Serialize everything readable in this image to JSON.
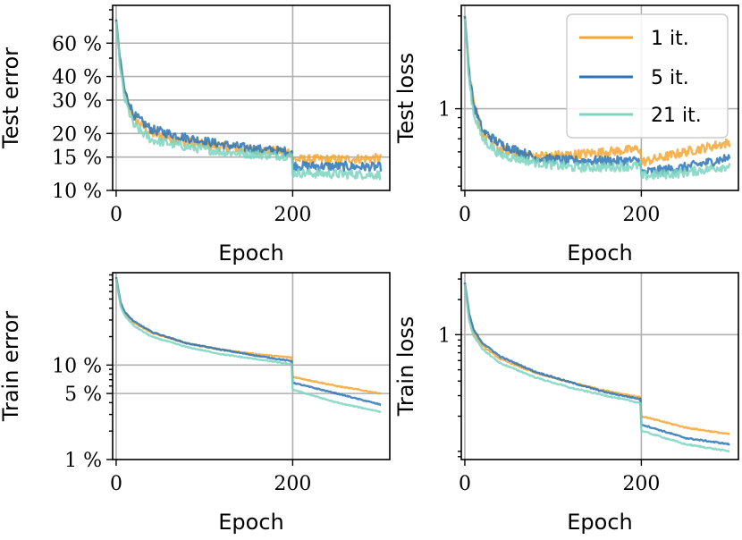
{
  "figure": {
    "legend": {
      "placement": "top-right of Test loss panel",
      "entries": [
        {
          "label": "1 it.",
          "color": "#f6a532"
        },
        {
          "label": "5 it.",
          "color": "#2c74b5"
        },
        {
          "label": "21 it.",
          "color": "#7dd4c0"
        }
      ]
    }
  },
  "chart_data": [
    {
      "type": "line",
      "id": "test-error",
      "ylabel": "Test error",
      "xlabel": "Epoch",
      "yscale": "log",
      "xlim": [
        -4,
        310
      ],
      "ylim": [
        10,
        95
      ],
      "xticks": [
        {
          "value": 0,
          "label": "0"
        },
        {
          "value": 200,
          "label": "200"
        }
      ],
      "yticks": [
        {
          "value": 10,
          "label": "10 %"
        },
        {
          "value": 15,
          "label": "15 %"
        },
        {
          "value": 20,
          "label": "20 %"
        },
        {
          "value": 30,
          "label": "30 %"
        },
        {
          "value": 40,
          "label": "40 %"
        },
        {
          "value": 60,
          "label": "60 %"
        }
      ],
      "series": [
        {
          "name": "1 it.",
          "points": [
            [
              0,
              80
            ],
            [
              5,
              45
            ],
            [
              10,
              32
            ],
            [
              20,
              24
            ],
            [
              40,
              20
            ],
            [
              80,
              18
            ],
            [
              120,
              17
            ],
            [
              160,
              16.3
            ],
            [
              199,
              16
            ],
            [
              200,
              14.6
            ],
            [
              250,
              14.6
            ],
            [
              300,
              14.8
            ]
          ]
        },
        {
          "name": "5 it.",
          "points": [
            [
              0,
              80
            ],
            [
              5,
              46
            ],
            [
              10,
              33
            ],
            [
              20,
              25
            ],
            [
              40,
              21
            ],
            [
              80,
              19
            ],
            [
              120,
              17.5
            ],
            [
              160,
              16.5
            ],
            [
              199,
              16
            ],
            [
              200,
              13.5
            ],
            [
              250,
              13.4
            ],
            [
              300,
              13.3
            ]
          ]
        },
        {
          "name": "21 it.",
          "points": [
            [
              0,
              78
            ],
            [
              5,
              42
            ],
            [
              10,
              30
            ],
            [
              20,
              22
            ],
            [
              40,
              18.5
            ],
            [
              80,
              17
            ],
            [
              120,
              16
            ],
            [
              160,
              15.5
            ],
            [
              199,
              15.2
            ],
            [
              200,
              12.4
            ],
            [
              250,
              12.2
            ],
            [
              300,
              12.1
            ]
          ]
        }
      ]
    },
    {
      "type": "line",
      "id": "test-loss",
      "ylabel": "Test loss",
      "xlabel": "Epoch",
      "yscale": "log",
      "xlim": [
        -4,
        310
      ],
      "ylim": [
        0.38,
        3.4
      ],
      "xticks": [
        {
          "value": 0,
          "label": "0"
        },
        {
          "value": 200,
          "label": "200"
        }
      ],
      "yticks": [
        {
          "value": 1,
          "label": "1"
        }
      ],
      "series": [
        {
          "name": "1 it.",
          "points": [
            [
              0,
              3
            ],
            [
              5,
              1.5
            ],
            [
              10,
              1.05
            ],
            [
              20,
              0.75
            ],
            [
              40,
              0.62
            ],
            [
              80,
              0.57
            ],
            [
              120,
              0.58
            ],
            [
              160,
              0.6
            ],
            [
              199,
              0.62
            ],
            [
              200,
              0.53
            ],
            [
              250,
              0.6
            ],
            [
              300,
              0.67
            ]
          ]
        },
        {
          "name": "5 it.",
          "points": [
            [
              0,
              3
            ],
            [
              5,
              1.5
            ],
            [
              10,
              1.05
            ],
            [
              20,
              0.77
            ],
            [
              40,
              0.66
            ],
            [
              80,
              0.56
            ],
            [
              120,
              0.54
            ],
            [
              160,
              0.54
            ],
            [
              199,
              0.54
            ],
            [
              200,
              0.47
            ],
            [
              250,
              0.5
            ],
            [
              300,
              0.56
            ]
          ]
        },
        {
          "name": "21 it.",
          "points": [
            [
              0,
              2.9
            ],
            [
              5,
              1.4
            ],
            [
              10,
              0.95
            ],
            [
              20,
              0.7
            ],
            [
              40,
              0.58
            ],
            [
              80,
              0.53
            ],
            [
              120,
              0.5
            ],
            [
              160,
              0.5
            ],
            [
              199,
              0.51
            ],
            [
              200,
              0.45
            ],
            [
              250,
              0.47
            ],
            [
              300,
              0.51
            ]
          ]
        }
      ]
    },
    {
      "type": "line",
      "id": "train-error",
      "ylabel": "Train error",
      "xlabel": "Epoch",
      "yscale": "log",
      "xlim": [
        -4,
        310
      ],
      "ylim": [
        1,
        95
      ],
      "xticks": [
        {
          "value": 0,
          "label": "0"
        },
        {
          "value": 200,
          "label": "200"
        }
      ],
      "yticks": [
        {
          "value": 1,
          "label": "1 %"
        },
        {
          "value": 5,
          "label": "5 %"
        },
        {
          "value": 10,
          "label": "10 %"
        }
      ],
      "series": [
        {
          "name": "1 it.",
          "points": [
            [
              0,
              85
            ],
            [
              5,
              45
            ],
            [
              10,
              35
            ],
            [
              20,
              28
            ],
            [
              40,
              22
            ],
            [
              80,
              17
            ],
            [
              120,
              14.5
            ],
            [
              160,
              13
            ],
            [
              199,
              12
            ],
            [
              200,
              7.5
            ],
            [
              250,
              6
            ],
            [
              300,
              5
            ]
          ]
        },
        {
          "name": "5 it.",
          "points": [
            [
              0,
              85
            ],
            [
              5,
              46
            ],
            [
              10,
              36
            ],
            [
              20,
              29
            ],
            [
              40,
              22.5
            ],
            [
              80,
              17
            ],
            [
              120,
              14.5
            ],
            [
              160,
              12.5
            ],
            [
              199,
              11
            ],
            [
              200,
              6.5
            ],
            [
              250,
              5
            ],
            [
              300,
              3.8
            ]
          ]
        },
        {
          "name": "21 it.",
          "points": [
            [
              0,
              82
            ],
            [
              5,
              42
            ],
            [
              10,
              33
            ],
            [
              20,
              26
            ],
            [
              40,
              20
            ],
            [
              80,
              15.5
            ],
            [
              120,
              13
            ],
            [
              160,
              11.5
            ],
            [
              199,
              10.2
            ],
            [
              200,
              5.5
            ],
            [
              250,
              4
            ],
            [
              300,
              3.2
            ]
          ]
        }
      ]
    },
    {
      "type": "line",
      "id": "train-loss",
      "ylabel": "Train loss",
      "xlabel": "Epoch",
      "yscale": "log",
      "xlim": [
        -4,
        310
      ],
      "ylim": [
        0.085,
        3.4
      ],
      "xticks": [
        {
          "value": 0,
          "label": "0"
        },
        {
          "value": 200,
          "label": "200"
        }
      ],
      "yticks": [
        {
          "value": 1,
          "label": "1"
        }
      ],
      "series": [
        {
          "name": "1 it.",
          "points": [
            [
              0,
              2.8
            ],
            [
              5,
              1.4
            ],
            [
              10,
              1.05
            ],
            [
              20,
              0.8
            ],
            [
              40,
              0.62
            ],
            [
              80,
              0.47
            ],
            [
              120,
              0.39
            ],
            [
              160,
              0.33
            ],
            [
              199,
              0.29
            ],
            [
              200,
              0.2
            ],
            [
              250,
              0.16
            ],
            [
              300,
              0.14
            ]
          ]
        },
        {
          "name": "5 it.",
          "points": [
            [
              0,
              2.8
            ],
            [
              5,
              1.5
            ],
            [
              10,
              1.1
            ],
            [
              20,
              0.85
            ],
            [
              40,
              0.65
            ],
            [
              80,
              0.48
            ],
            [
              120,
              0.39
            ],
            [
              160,
              0.32
            ],
            [
              199,
              0.28
            ],
            [
              200,
              0.17
            ],
            [
              250,
              0.13
            ],
            [
              300,
              0.115
            ]
          ]
        },
        {
          "name": "21 it.",
          "points": [
            [
              0,
              2.7
            ],
            [
              5,
              1.3
            ],
            [
              10,
              0.98
            ],
            [
              20,
              0.75
            ],
            [
              40,
              0.57
            ],
            [
              80,
              0.43
            ],
            [
              120,
              0.35
            ],
            [
              160,
              0.3
            ],
            [
              199,
              0.26
            ],
            [
              200,
              0.15
            ],
            [
              250,
              0.115
            ],
            [
              300,
              0.1
            ]
          ]
        }
      ]
    }
  ]
}
